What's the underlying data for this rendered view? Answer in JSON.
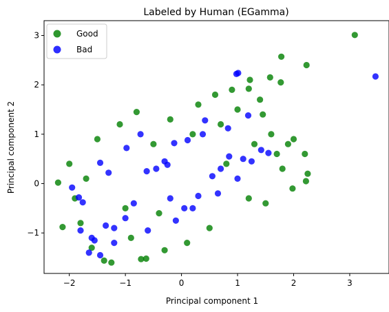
{
  "chart_data": {
    "type": "scatter",
    "title": "Labeled by Human (EGamma)",
    "xlabel": "Principal component 1",
    "ylabel": "Principal component 2",
    "xlim": [
      -2.45,
      3.7
    ],
    "ylim": [
      -1.82,
      3.3
    ],
    "x_ticks": [
      -2,
      -1,
      0,
      1,
      2,
      3
    ],
    "y_ticks": [
      -1,
      0,
      1,
      2,
      3
    ],
    "x_tick_labels": [
      "−2",
      "−1",
      "0",
      "1",
      "2",
      "3"
    ],
    "y_tick_labels": [
      "−1",
      "0",
      "1",
      "2",
      "3"
    ],
    "grid": false,
    "legend_position": "top-left",
    "series": [
      {
        "name": "Good",
        "color": "#008000",
        "points": [
          [
            3.09,
            3.01
          ],
          [
            1.78,
            2.57
          ],
          [
            2.23,
            2.4
          ],
          [
            1.58,
            2.15
          ],
          [
            1.77,
            2.05
          ],
          [
            1.2,
            1.92
          ],
          [
            1.22,
            2.1
          ],
          [
            1.45,
            1.4
          ],
          [
            1.9,
            0.8
          ],
          [
            2.2,
            0.6
          ],
          [
            2.25,
            0.2
          ],
          [
            2.22,
            0.05
          ],
          [
            1.98,
            -0.1
          ],
          [
            -2.12,
            -0.88
          ],
          [
            -0.63,
            -1.52
          ],
          [
            -0.72,
            -1.53
          ],
          [
            -1.25,
            -1.6
          ],
          [
            -1.38,
            -1.56
          ],
          [
            -2.0,
            0.4
          ],
          [
            -2.2,
            0.02
          ],
          [
            -1.9,
            -0.3
          ],
          [
            -1.5,
            0.9
          ],
          [
            -1.1,
            1.2
          ],
          [
            -0.8,
            1.45
          ],
          [
            -0.2,
            1.3
          ],
          [
            0.3,
            1.6
          ],
          [
            0.6,
            1.8
          ],
          [
            0.9,
            1.9
          ],
          [
            1.0,
            1.5
          ],
          [
            1.4,
            1.7
          ],
          [
            1.6,
            1.0
          ],
          [
            1.8,
            0.3
          ],
          [
            1.7,
            0.6
          ],
          [
            1.5,
            -0.4
          ],
          [
            1.2,
            -0.3
          ],
          [
            0.5,
            -0.9
          ],
          [
            0.1,
            -1.2
          ],
          [
            -0.3,
            -1.35
          ],
          [
            -0.9,
            -1.1
          ],
          [
            -1.6,
            -1.3
          ],
          [
            -1.8,
            -0.8
          ],
          [
            -1.7,
            0.1
          ],
          [
            -0.5,
            0.8
          ],
          [
            0.2,
            1.0
          ],
          [
            0.7,
            1.2
          ],
          [
            -0.4,
            -0.6
          ],
          [
            -1.0,
            -0.5
          ],
          [
            0.8,
            0.4
          ],
          [
            1.3,
            0.8
          ],
          [
            2.0,
            0.9
          ]
        ]
      },
      {
        "name": "Bad",
        "color": "#0000ff",
        "points": [
          [
            3.46,
            2.17
          ],
          [
            1.01,
            2.24
          ],
          [
            0.98,
            2.22
          ],
          [
            1.19,
            1.38
          ],
          [
            0.83,
            1.12
          ],
          [
            0.42,
            1.28
          ],
          [
            0.38,
            1.0
          ],
          [
            0.11,
            0.88
          ],
          [
            -0.73,
            1.0
          ],
          [
            -0.98,
            0.72
          ],
          [
            -0.13,
            0.82
          ],
          [
            -1.45,
            0.42
          ],
          [
            -1.3,
            0.22
          ],
          [
            -1.95,
            -0.08
          ],
          [
            -1.83,
            -0.28
          ],
          [
            -1.76,
            -0.38
          ],
          [
            -0.62,
            0.25
          ],
          [
            -0.45,
            0.3
          ],
          [
            -0.3,
            0.45
          ],
          [
            -0.25,
            0.38
          ],
          [
            0.85,
            0.55
          ],
          [
            1.1,
            0.5
          ],
          [
            1.25,
            0.45
          ],
          [
            1.42,
            0.68
          ],
          [
            1.55,
            0.62
          ],
          [
            0.7,
            0.3
          ],
          [
            0.55,
            0.15
          ],
          [
            0.65,
            -0.2
          ],
          [
            0.2,
            -0.5
          ],
          [
            0.05,
            -0.5
          ],
          [
            -0.2,
            -0.3
          ],
          [
            -0.85,
            -0.4
          ],
          [
            -1.0,
            -0.7
          ],
          [
            -1.2,
            -0.9
          ],
          [
            -1.35,
            -0.85
          ],
          [
            -1.55,
            -1.15
          ],
          [
            -1.8,
            -0.95
          ],
          [
            -1.65,
            -1.4
          ],
          [
            -1.45,
            -1.45
          ],
          [
            -1.2,
            -1.2
          ],
          [
            -0.6,
            -0.95
          ],
          [
            -0.1,
            -0.75
          ],
          [
            1.0,
            0.1
          ],
          [
            0.3,
            -0.25
          ],
          [
            -1.6,
            -1.1
          ]
        ]
      }
    ]
  }
}
